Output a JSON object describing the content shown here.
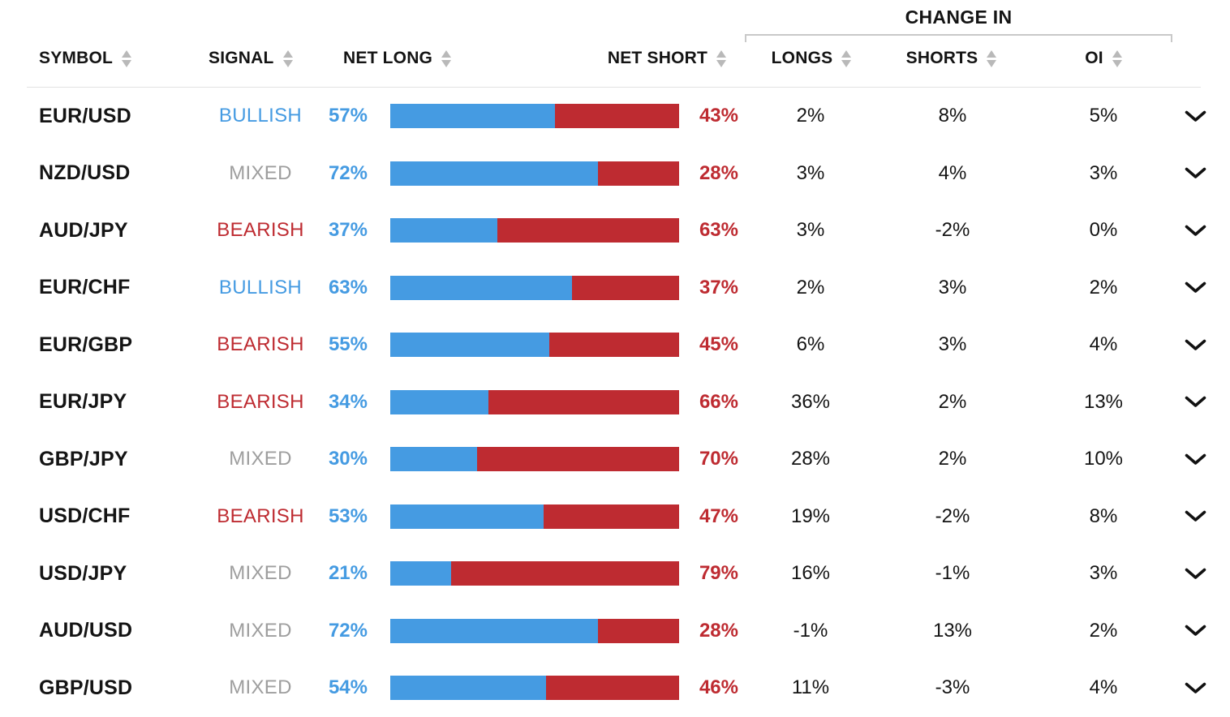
{
  "table": {
    "group_header": {
      "label": "CHANGE IN"
    },
    "columns": {
      "symbol": "SYMBOL",
      "signal": "SIGNAL",
      "net_long": "NET LONG",
      "net_short": "NET SHORT",
      "longs": "LONGS",
      "shorts": "SHORTS",
      "oi": "OI"
    },
    "rows": [
      {
        "symbol": "EUR/USD",
        "signal": "BULLISH",
        "net_long_label": "57%",
        "net_long_pct": 57,
        "net_short_label": "43%",
        "net_short_pct": 43,
        "change_longs": "2%",
        "change_shorts": "8%",
        "change_oi": "5%"
      },
      {
        "symbol": "NZD/USD",
        "signal": "MIXED",
        "net_long_label": "72%",
        "net_long_pct": 72,
        "net_short_label": "28%",
        "net_short_pct": 28,
        "change_longs": "3%",
        "change_shorts": "4%",
        "change_oi": "3%"
      },
      {
        "symbol": "AUD/JPY",
        "signal": "BEARISH",
        "net_long_label": "37%",
        "net_long_pct": 37,
        "net_short_label": "63%",
        "net_short_pct": 63,
        "change_longs": "3%",
        "change_shorts": "-2%",
        "change_oi": "0%"
      },
      {
        "symbol": "EUR/CHF",
        "signal": "BULLISH",
        "net_long_label": "63%",
        "net_long_pct": 63,
        "net_short_label": "37%",
        "net_short_pct": 37,
        "change_longs": "2%",
        "change_shorts": "3%",
        "change_oi": "2%"
      },
      {
        "symbol": "EUR/GBP",
        "signal": "BEARISH",
        "net_long_label": "55%",
        "net_long_pct": 55,
        "net_short_label": "45%",
        "net_short_pct": 45,
        "change_longs": "6%",
        "change_shorts": "3%",
        "change_oi": "4%"
      },
      {
        "symbol": "EUR/JPY",
        "signal": "BEARISH",
        "net_long_label": "34%",
        "net_long_pct": 34,
        "net_short_label": "66%",
        "net_short_pct": 66,
        "change_longs": "36%",
        "change_shorts": "2%",
        "change_oi": "13%"
      },
      {
        "symbol": "GBP/JPY",
        "signal": "MIXED",
        "net_long_label": "30%",
        "net_long_pct": 30,
        "net_short_label": "70%",
        "net_short_pct": 70,
        "change_longs": "28%",
        "change_shorts": "2%",
        "change_oi": "10%"
      },
      {
        "symbol": "USD/CHF",
        "signal": "BEARISH",
        "net_long_label": "53%",
        "net_long_pct": 53,
        "net_short_label": "47%",
        "net_short_pct": 47,
        "change_longs": "19%",
        "change_shorts": "-2%",
        "change_oi": "8%"
      },
      {
        "symbol": "USD/JPY",
        "signal": "MIXED",
        "net_long_label": "21%",
        "net_long_pct": 21,
        "net_short_label": "79%",
        "net_short_pct": 79,
        "change_longs": "16%",
        "change_shorts": "-1%",
        "change_oi": "3%"
      },
      {
        "symbol": "AUD/USD",
        "signal": "MIXED",
        "net_long_label": "72%",
        "net_long_pct": 72,
        "net_short_label": "28%",
        "net_short_pct": 28,
        "change_longs": "-1%",
        "change_shorts": "13%",
        "change_oi": "2%"
      },
      {
        "symbol": "GBP/USD",
        "signal": "MIXED",
        "net_long_label": "54%",
        "net_long_pct": 54,
        "net_short_label": "46%",
        "net_short_pct": 46,
        "change_longs": "11%",
        "change_shorts": "-3%",
        "change_oi": "4%"
      }
    ]
  },
  "colors": {
    "long_blue": "#459be2",
    "short_red": "#be2b31",
    "mixed_gray": "#9e9e9e",
    "sort_icon_gray": "#b9b9b9",
    "bracket_gray": "#c9c9c9",
    "divider_gray": "#e2e2e2"
  },
  "icons": {
    "sort": "sort-arrows",
    "expand": "chevron-down"
  }
}
